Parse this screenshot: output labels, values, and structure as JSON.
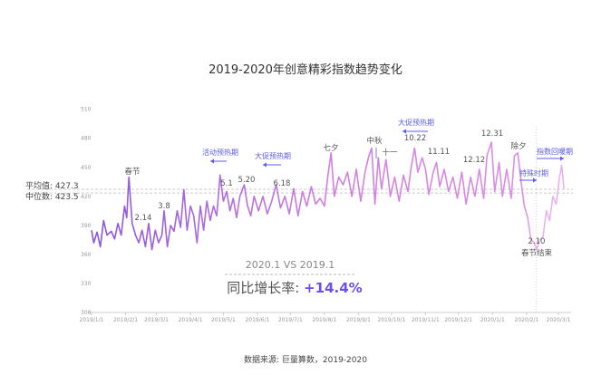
{
  "chart_data": {
    "type": "line",
    "title": "2019-2020年创意精彩指数趋势变化",
    "xlabel": "",
    "ylabel": "",
    "ylim": [
      300,
      510
    ],
    "yticks": [
      "510",
      "480",
      "450",
      "420",
      "390",
      "360",
      "330",
      "300"
    ],
    "xticks": [
      "2019/1/1",
      "2019/2/1",
      "2019/3/1",
      "2019/4/1",
      "2019/5/1",
      "2019/6/1",
      "2019/7/1",
      "2019/8/1",
      "2019/9/1",
      "2019/10/1",
      "2019/11/1",
      "2019/12/1",
      "2020/1/1",
      "2020/2/1",
      "2020/3/1"
    ],
    "grid": false,
    "reference_lines": [
      {
        "label": "平均值: 427.3",
        "value": 427.3
      },
      {
        "label": "中位数: 423.5",
        "value": 423.5
      }
    ],
    "colors": {
      "start": "#8a55e0",
      "mid": "#d27fe0",
      "end": "#eab2ee",
      "annotation": "#5b5bf0"
    },
    "points": [
      [
        "2019-01-01",
        385
      ],
      [
        "2019-01-03",
        372
      ],
      [
        "2019-01-06",
        383
      ],
      [
        "2019-01-09",
        368
      ],
      [
        "2019-01-12",
        395
      ],
      [
        "2019-01-15",
        380
      ],
      [
        "2019-01-19",
        384
      ],
      [
        "2019-01-22",
        376
      ],
      [
        "2019-01-25",
        392
      ],
      [
        "2019-01-28",
        380
      ],
      [
        "2019-01-31",
        410
      ],
      [
        "2019-02-02",
        398
      ],
      [
        "2019-02-04",
        440
      ],
      [
        "2019-02-07",
        392
      ],
      [
        "2019-02-10",
        380
      ],
      [
        "2019-02-13",
        372
      ],
      [
        "2019-02-16",
        385
      ],
      [
        "2019-02-19",
        368
      ],
      [
        "2019-02-22",
        392
      ],
      [
        "2019-02-25",
        365
      ],
      [
        "2019-02-28",
        385
      ],
      [
        "2019-03-03",
        372
      ],
      [
        "2019-03-06",
        380
      ],
      [
        "2019-03-08",
        405
      ],
      [
        "2019-03-11",
        368
      ],
      [
        "2019-03-14",
        390
      ],
      [
        "2019-03-17",
        384
      ],
      [
        "2019-03-20",
        405
      ],
      [
        "2019-03-23",
        388
      ],
      [
        "2019-03-26",
        427
      ],
      [
        "2019-03-29",
        385
      ],
      [
        "2019-04-01",
        410
      ],
      [
        "2019-04-04",
        400
      ],
      [
        "2019-04-07",
        372
      ],
      [
        "2019-04-10",
        410
      ],
      [
        "2019-04-13",
        385
      ],
      [
        "2019-04-16",
        415
      ],
      [
        "2019-04-19",
        395
      ],
      [
        "2019-04-22",
        410
      ],
      [
        "2019-04-25",
        400
      ],
      [
        "2019-04-28",
        442
      ],
      [
        "2019-05-01",
        415
      ],
      [
        "2019-05-04",
        425
      ],
      [
        "2019-05-07",
        405
      ],
      [
        "2019-05-10",
        418
      ],
      [
        "2019-05-13",
        398
      ],
      [
        "2019-05-16",
        420
      ],
      [
        "2019-05-20",
        432
      ],
      [
        "2019-05-23",
        410
      ],
      [
        "2019-05-26",
        400
      ],
      [
        "2019-05-29",
        420
      ],
      [
        "2019-06-02",
        405
      ],
      [
        "2019-06-06",
        420
      ],
      [
        "2019-06-10",
        402
      ],
      [
        "2019-06-14",
        415
      ],
      [
        "2019-06-18",
        432
      ],
      [
        "2019-06-22",
        408
      ],
      [
        "2019-06-26",
        420
      ],
      [
        "2019-06-30",
        402
      ],
      [
        "2019-07-04",
        428
      ],
      [
        "2019-07-08",
        400
      ],
      [
        "2019-07-12",
        425
      ],
      [
        "2019-07-16",
        410
      ],
      [
        "2019-07-20",
        430
      ],
      [
        "2019-07-24",
        412
      ],
      [
        "2019-07-28",
        418
      ],
      [
        "2019-08-01",
        410
      ],
      [
        "2019-08-04",
        440
      ],
      [
        "2019-08-07",
        465
      ],
      [
        "2019-08-10",
        420
      ],
      [
        "2019-08-14",
        440
      ],
      [
        "2019-08-18",
        432
      ],
      [
        "2019-08-22",
        445
      ],
      [
        "2019-08-26",
        420
      ],
      [
        "2019-08-30",
        448
      ],
      [
        "2019-09-03",
        415
      ],
      [
        "2019-09-07",
        445
      ],
      [
        "2019-09-10",
        460
      ],
      [
        "2019-09-13",
        470
      ],
      [
        "2019-09-16",
        412
      ],
      [
        "2019-09-19",
        460
      ],
      [
        "2019-09-22",
        428
      ],
      [
        "2019-09-26",
        458
      ],
      [
        "2019-09-30",
        420
      ],
      [
        "2019-10-04",
        440
      ],
      [
        "2019-10-08",
        415
      ],
      [
        "2019-10-12",
        442
      ],
      [
        "2019-10-16",
        425
      ],
      [
        "2019-10-19",
        450
      ],
      [
        "2019-10-22",
        470
      ],
      [
        "2019-10-25",
        445
      ],
      [
        "2019-10-29",
        460
      ],
      [
        "2019-11-01",
        448
      ],
      [
        "2019-11-04",
        422
      ],
      [
        "2019-11-08",
        445
      ],
      [
        "2019-11-11",
        455
      ],
      [
        "2019-11-14",
        430
      ],
      [
        "2019-11-18",
        448
      ],
      [
        "2019-11-22",
        425
      ],
      [
        "2019-11-26",
        440
      ],
      [
        "2019-11-30",
        418
      ],
      [
        "2019-12-04",
        445
      ],
      [
        "2019-12-08",
        412
      ],
      [
        "2019-12-12",
        440
      ],
      [
        "2019-12-16",
        420
      ],
      [
        "2019-12-20",
        448
      ],
      [
        "2019-12-24",
        418
      ],
      [
        "2019-12-27",
        462
      ],
      [
        "2019-12-31",
        476
      ],
      [
        "2020-01-03",
        425
      ],
      [
        "2020-01-07",
        455
      ],
      [
        "2020-01-10",
        420
      ],
      [
        "2020-01-14",
        448
      ],
      [
        "2020-01-18",
        418
      ],
      [
        "2020-01-21",
        462
      ],
      [
        "2020-01-24",
        465
      ],
      [
        "2020-01-27",
        435
      ],
      [
        "2020-01-30",
        410
      ],
      [
        "2020-02-02",
        398
      ],
      [
        "2020-02-05",
        375
      ],
      [
        "2020-02-08",
        372
      ],
      [
        "2020-02-10",
        365
      ],
      [
        "2020-02-13",
        375
      ],
      [
        "2020-02-16",
        378
      ],
      [
        "2020-02-19",
        405
      ],
      [
        "2020-02-22",
        395
      ],
      [
        "2020-02-25",
        420
      ],
      [
        "2020-02-28",
        412
      ],
      [
        "2020-03-02",
        440
      ],
      [
        "2020-03-04",
        452
      ],
      [
        "2020-03-06",
        428
      ]
    ],
    "annotations": {
      "spring_festival": "春节",
      "d214": "2.14",
      "d38": "3.8",
      "d51": "5.1",
      "d520": "5.20",
      "d618": "6.18",
      "qixi": "七夕",
      "mid_autumn": "中秋",
      "national_day": "十一",
      "d1022": "10.22",
      "d1111": "11.11",
      "d1212": "12.12",
      "d1231": "12.31",
      "new_year_eve": "除夕",
      "d210": "2.10",
      "spring_end": "春节结束",
      "activity_preheat": "活动预热期",
      "promo_preheat_1": "大促预热期",
      "promo_preheat_2": "大促预热期",
      "special_period": "特殊时期",
      "recovery_period": "指数回暖期"
    }
  },
  "comparison": {
    "label": "2020.1 VS 2019.1",
    "growth_label": "同比增长率: ",
    "growth_value": "+14.4%"
  },
  "source": "数据来源: 巨量算数，2019-2020"
}
